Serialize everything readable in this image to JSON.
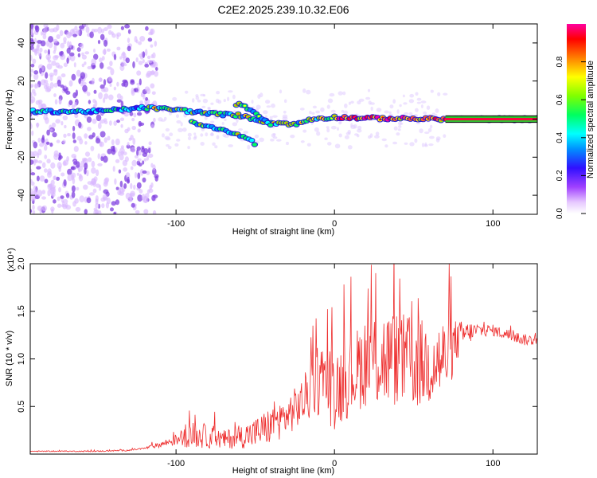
{
  "title": "C2E2.2025.239.10.32.E06",
  "chart_data": [
    {
      "type": "heatmap",
      "name": "spectrogram",
      "xlabel": "Height of straight line (km)",
      "ylabel": "Frequency (Hz)",
      "xlim": [
        -192,
        128
      ],
      "ylim": [
        -50,
        50
      ],
      "xticks": [
        -100,
        0,
        100
      ],
      "yticks": [
        -40,
        -20,
        0,
        20,
        40
      ],
      "colorbar": {
        "label": "Normalized spectral amplitude",
        "range": [
          0,
          1
        ],
        "ticks": [
          "0.0",
          "0.2",
          "0.4",
          "0.6",
          "0.8"
        ]
      },
      "features": [
        {
          "label": "ridge",
          "x": [
            -192,
            -150,
            -120,
            -100,
            -80,
            -60,
            -50,
            -40,
            -32,
            -25,
            -15,
            0,
            20,
            50,
            70,
            128
          ],
          "y": [
            4,
            4,
            6,
            5,
            3,
            2,
            0,
            -2,
            -2,
            -3,
            0,
            1,
            0.5,
            0.2,
            0,
            0
          ]
        },
        {
          "label": "upper branch",
          "x": [
            -62,
            -55,
            -48,
            -40
          ],
          "y": [
            8,
            6,
            2,
            -3
          ]
        },
        {
          "label": "lower branch",
          "x": [
            -90,
            -75,
            -60,
            -50
          ],
          "y": [
            -2,
            -5,
            -8,
            -13
          ]
        },
        {
          "label": "horizontal band",
          "x": [
            70,
            128
          ],
          "y": [
            0,
            0
          ]
        }
      ]
    },
    {
      "type": "line",
      "name": "snr",
      "xlabel": "Height of straight line (km)",
      "ylabel": "SNR (10 * v/v)",
      "scale_label": "(x10⁴)",
      "xlim": [
        -192,
        128
      ],
      "ylim": [
        0,
        2.0
      ],
      "xticks": [
        -100,
        0,
        100
      ],
      "yticks": [
        0.5,
        1.0,
        1.5,
        2.0
      ],
      "ytick_labels": [
        "0.5",
        "1.0",
        "1.5",
        "2.0"
      ],
      "series": [
        {
          "name": "SNR",
          "color": "#ee3030",
          "x": [
            -192,
            -170,
            -150,
            -130,
            -120,
            -110,
            -100,
            -90,
            -80,
            -70,
            -60,
            -50,
            -40,
            -30,
            -20,
            -10,
            0,
            10,
            20,
            30,
            40,
            50,
            60,
            70,
            80,
            90,
            100,
            110,
            120,
            128
          ],
          "y": [
            0.03,
            0.03,
            0.03,
            0.04,
            0.06,
            0.1,
            0.15,
            0.2,
            0.18,
            0.15,
            0.18,
            0.22,
            0.3,
            0.4,
            0.55,
            0.8,
            0.7,
            0.8,
            1.0,
            1.0,
            1.0,
            0.95,
            0.95,
            1.0,
            1.25,
            1.3,
            1.3,
            1.25,
            1.2,
            1.2
          ],
          "amp": [
            0.005,
            0.005,
            0.006,
            0.008,
            0.01,
            0.03,
            0.06,
            0.14,
            0.12,
            0.1,
            0.12,
            0.16,
            0.2,
            0.2,
            0.25,
            0.4,
            0.45,
            0.4,
            0.5,
            0.55,
            0.5,
            0.5,
            0.45,
            0.45,
            0.15,
            0.08,
            0.06,
            0.06,
            0.06,
            0.06
          ]
        }
      ]
    }
  ]
}
